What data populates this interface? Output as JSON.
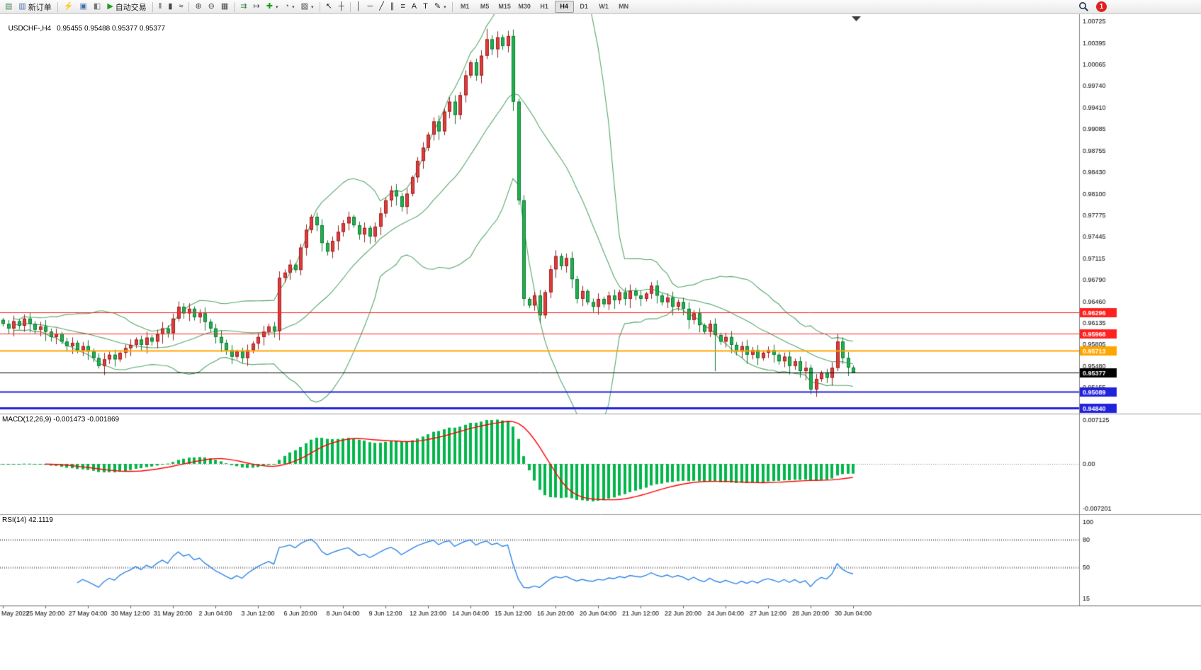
{
  "toolbar": {
    "groups": [
      {
        "name": "file-tools",
        "items": [
          {
            "name": "new-chart-button",
            "glyph": "▤",
            "color": "#3f7d4e"
          },
          {
            "name": "new-order-button",
            "glyph": "▥",
            "color": "#3f6fa5",
            "label": "新订单"
          }
        ]
      },
      {
        "name": "service-tools",
        "items": [
          {
            "name": "mql5-community-icon",
            "glyph": "⚡",
            "color": "#d59f00"
          },
          {
            "name": "web-terminal-icon",
            "glyph": "▣",
            "color": "#3f6fa5"
          },
          {
            "name": "profiles-icon",
            "glyph": "◧",
            "color": "#777777"
          },
          {
            "name": "autotrading-button",
            "glyph": "▶",
            "color": "#18a018",
            "label": "自动交易"
          }
        ]
      },
      {
        "name": "chart-type-tools",
        "items": [
          {
            "name": "bar-chart-button",
            "glyph": "‖",
            "color": "#444444"
          },
          {
            "name": "candlestick-chart-button",
            "glyph": "▮",
            "color": "#444444"
          },
          {
            "name": "line-chart-button",
            "glyph": "≈",
            "color": "#444444"
          }
        ]
      },
      {
        "name": "zoom-tools",
        "items": [
          {
            "name": "zoom-in-button",
            "glyph": "⊕",
            "color": "#444444"
          },
          {
            "name": "zoom-out-button",
            "glyph": "⊖",
            "color": "#444444"
          },
          {
            "name": "tile-windows-button",
            "glyph": "▦",
            "color": "#444444"
          }
        ]
      },
      {
        "name": "chart-control-tools",
        "items": [
          {
            "name": "auto-scroll-button",
            "glyph": "⇉",
            "color": "#2f7d3f"
          },
          {
            "name": "chart-shift-button",
            "glyph": "↦",
            "color": "#444444"
          },
          {
            "name": "indicators-button",
            "glyph": "✚",
            "color": "#18a018",
            "caret": true
          },
          {
            "name": "periods-button",
            "glyph": "◔",
            "color": "#2f7d3f",
            "caret": true
          },
          {
            "name": "templates-button",
            "glyph": "▨",
            "color": "#444444",
            "caret": true
          }
        ]
      },
      {
        "name": "cursor-tools",
        "items": [
          {
            "name": "cursor-button",
            "glyph": "↖",
            "color": "#222222"
          },
          {
            "name": "crosshair-button",
            "glyph": "┼",
            "color": "#222222"
          }
        ]
      },
      {
        "name": "line-study-tools",
        "items": [
          {
            "name": "vertical-line-button",
            "glyph": "│",
            "color": "#222222"
          },
          {
            "name": "horizontal-line-button",
            "glyph": "─",
            "color": "#222222"
          },
          {
            "name": "trendline-button",
            "glyph": "╱",
            "color": "#222222"
          },
          {
            "name": "equidistant-channel-button",
            "glyph": "∥",
            "color": "#222222"
          },
          {
            "name": "fibonacci-button",
            "glyph": "≡",
            "color": "#222222"
          },
          {
            "name": "text-button",
            "glyph": "A",
            "color": "#222222"
          },
          {
            "name": "label-button",
            "glyph": "T",
            "color": "#222222"
          },
          {
            "name": "shapes-button",
            "glyph": "✎",
            "color": "#222222",
            "caret": true
          }
        ]
      }
    ],
    "timeframes": [
      "M1",
      "M5",
      "M15",
      "M30",
      "H1",
      "H4",
      "D1",
      "W1",
      "MN"
    ],
    "active_timeframe": "H4",
    "notification_count": "1"
  },
  "chart": {
    "title": {
      "symbol": "USDCHF-,H4",
      "ohlc": "0.95455 0.95488 0.95377 0.95377"
    },
    "price_axis_labels": [
      "1.00725",
      "1.00395",
      "1.00065",
      "0.99740",
      "0.99410",
      "0.99085",
      "0.98755",
      "0.98430",
      "0.98100",
      "0.97775",
      "0.97445",
      "0.97115",
      "0.96790",
      "0.96460",
      "0.96135",
      "0.95805",
      "0.95480",
      "0.95155"
    ],
    "levels": [
      {
        "name": "resistance-line-upper",
        "price": "0.96296",
        "color": "#ff2020",
        "line_width": 1
      },
      {
        "name": "resistance-line-lower",
        "price": "0.95968",
        "color": "#ff2020",
        "line_width": 1
      },
      {
        "name": "pivot-line",
        "price": "0.95713",
        "color": "#ffa500",
        "line_width": 2
      },
      {
        "name": "current-price-line",
        "price": "0.95377",
        "color": "#000000",
        "line_width": 1
      },
      {
        "name": "support-line-upper",
        "price": "0.95089",
        "color": "#2222dd",
        "line_width": 2
      },
      {
        "name": "support-line-lower",
        "price": "0.94840",
        "color": "#2222dd",
        "line_width": 3
      }
    ],
    "time_axis_labels": [
      "May 2022",
      "25 May 20:00",
      "27 May 04:00",
      "30 May 12:00",
      "31 May 20:00",
      "2 Jun 04:00",
      "3 Jun 12:00",
      "6 Jun 20:00",
      "8 Jun 04:00",
      "9 Jun 12:00",
      "12 Jun 23:00",
      "14 Jun 04:00",
      "15 Jun 12:00",
      "16 Jun 20:00",
      "20 Jun 04:00",
      "21 Jun 12:00",
      "22 Jun 20:00",
      "24 Jun 04:00",
      "27 Jun 12:00",
      "28 Jun 20:00",
      "30 Jun 04:00"
    ]
  },
  "macd_panel": {
    "label": "MACD(12,26,9) -0.001473 -0.001869",
    "scale_labels": [
      "0.007125",
      "0.00",
      "-0.007201"
    ],
    "histogram_color": "#00b64a",
    "signal_color": "#ff0000"
  },
  "rsi_panel": {
    "label": "RSI(14) 42.1119",
    "scale_labels": [
      "100",
      "80",
      "50",
      "15"
    ],
    "dotted_levels": [
      80,
      50
    ],
    "line_color": "#2e86e8"
  },
  "chart_data": {
    "type": "candlestick",
    "symbol": "USDCHF",
    "timeframe": "H4",
    "up_color": "#e13b3b",
    "up_border": "#9c1f1f",
    "down_color": "#21b14e",
    "down_border": "#0e7a33",
    "bollinger": {
      "period": 20,
      "deviation": 2,
      "color": "#55a86b"
    },
    "macd": {
      "fast": 12,
      "slow": 26,
      "signal": 9
    },
    "rsi": {
      "period": 14
    },
    "price_top_anchor": 1.00725,
    "price_bottom_anchor": 0.9484,
    "macd_scale_max": 0.007125,
    "closes": [
      0.9612,
      0.9605,
      0.9616,
      0.9609,
      0.962,
      0.9612,
      0.9603,
      0.9608,
      0.96,
      0.9592,
      0.9597,
      0.9585,
      0.9578,
      0.9583,
      0.9572,
      0.9578,
      0.957,
      0.956,
      0.9548,
      0.9558,
      0.9565,
      0.9558,
      0.9568,
      0.9575,
      0.958,
      0.9588,
      0.958,
      0.9591,
      0.9585,
      0.9596,
      0.9605,
      0.9598,
      0.962,
      0.9638,
      0.9628,
      0.9635,
      0.9622,
      0.9628,
      0.9615,
      0.9605,
      0.9592,
      0.9583,
      0.9572,
      0.9562,
      0.957,
      0.956,
      0.9572,
      0.9582,
      0.9592,
      0.96,
      0.9608,
      0.9601,
      0.9682,
      0.969,
      0.9702,
      0.9694,
      0.9728,
      0.9755,
      0.9775,
      0.9762,
      0.9735,
      0.9722,
      0.9738,
      0.9752,
      0.9765,
      0.9775,
      0.9762,
      0.9748,
      0.9758,
      0.9745,
      0.976,
      0.978,
      0.98,
      0.9815,
      0.9806,
      0.979,
      0.981,
      0.9835,
      0.986,
      0.988,
      0.99,
      0.992,
      0.9905,
      0.9935,
      0.995,
      0.993,
      0.996,
      0.999,
      1.001,
      0.999,
      1.002,
      1.0045,
      1.003,
      1.0048,
      1.0035,
      1.005,
      0.995,
      0.98,
      0.965,
      0.964,
      0.9655,
      0.9625,
      0.966,
      0.9695,
      0.9715,
      0.97,
      0.9712,
      0.968,
      0.965,
      0.9662,
      0.9645,
      0.9638,
      0.965,
      0.9642,
      0.9655,
      0.9648,
      0.966,
      0.965,
      0.9662,
      0.9655,
      0.965,
      0.9658,
      0.967,
      0.9655,
      0.9645,
      0.9652,
      0.9638,
      0.9645,
      0.9635,
      0.9618,
      0.9628,
      0.961,
      0.96,
      0.9612,
      0.9595,
      0.9585,
      0.9592,
      0.958,
      0.957,
      0.9578,
      0.9565,
      0.9572,
      0.956,
      0.9568,
      0.9572,
      0.9565,
      0.9555,
      0.9562,
      0.9548,
      0.9555,
      0.954,
      0.9545,
      0.9512,
      0.9528,
      0.9538,
      0.953,
      0.9545,
      0.9585,
      0.956,
      0.95455,
      0.95377
    ],
    "wick_overrides": {
      "18": {
        "l": 0.9544
      },
      "33": {
        "h": 0.9646
      },
      "69": {
        "l": 0.9734
      },
      "91": {
        "h": 1.0061
      },
      "95": {
        "h": 1.0058
      },
      "134": {
        "l": 0.954
      },
      "152": {
        "l": 0.9505
      },
      "157": {
        "h": 0.9597
      },
      "160": {
        "h": 0.95488,
        "l": 0.95377
      }
    },
    "last_ohlc": {
      "open": "0.95455",
      "high": "0.95488",
      "low": "0.95377",
      "close": "0.95377"
    }
  }
}
